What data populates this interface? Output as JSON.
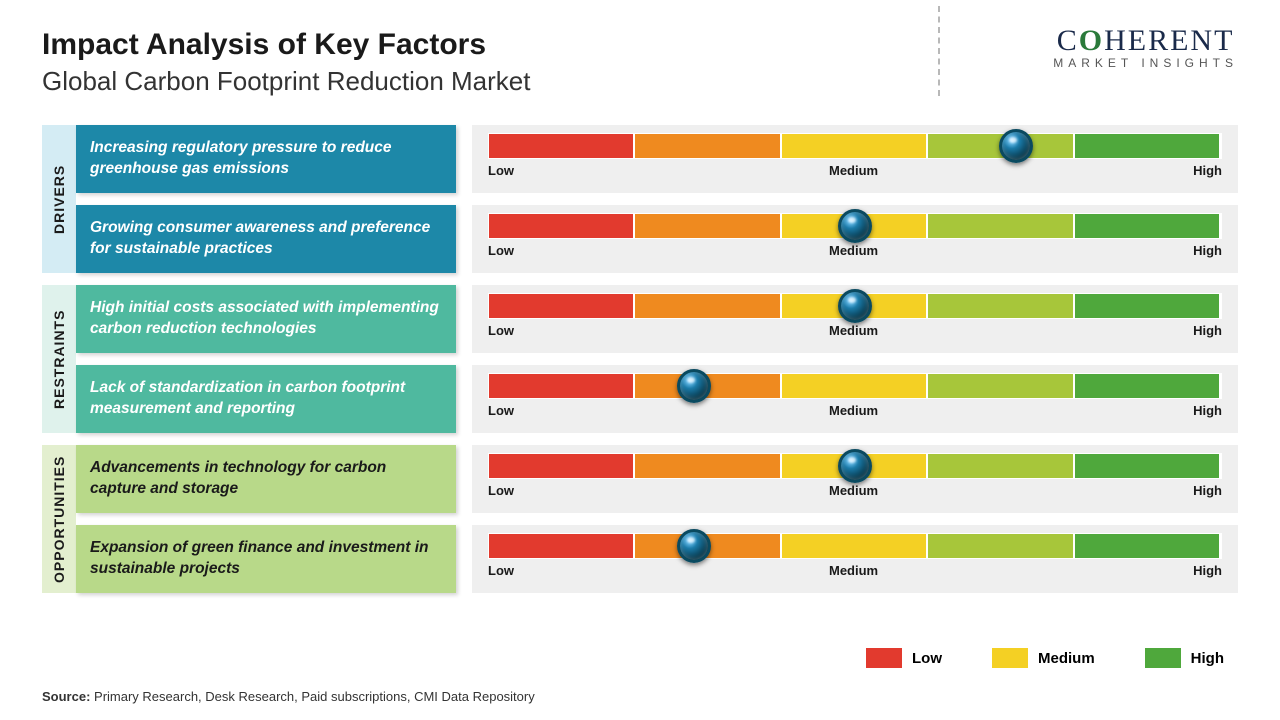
{
  "title": "Impact Analysis of Key Factors",
  "subtitle": "Global Carbon Footprint Reduction Market",
  "logo": {
    "brand": "COHERENT",
    "tagline": "MARKET INSIGHTS"
  },
  "gauge": {
    "segment_colors": [
      "#e23a2e",
      "#ef8a1f",
      "#f4d024",
      "#a7c63a",
      "#4fa83c"
    ],
    "label_low": "Low",
    "label_medium": "Medium",
    "label_high": "High",
    "track_bg": "#efefef",
    "marker_fill": "#1a7aa8",
    "marker_border": "#0a4a60"
  },
  "sections": [
    {
      "label": "DRIVERS",
      "vlabel_bg": "#d4ecf4",
      "factor_bg": "#1d88a8",
      "factor_text_dark": false,
      "rows": [
        {
          "text": "Increasing regulatory pressure to reduce greenhouse gas emissions",
          "position_pct": 72
        },
        {
          "text": "Growing consumer awareness and preference for sustainable practices",
          "position_pct": 50
        }
      ]
    },
    {
      "label": "RESTRAINTS",
      "vlabel_bg": "#dff2ec",
      "factor_bg": "#4fb99f",
      "factor_text_dark": false,
      "rows": [
        {
          "text": "High initial costs associated with implementing carbon reduction technologies",
          "position_pct": 50
        },
        {
          "text": "Lack of standardization in carbon footprint measurement and reporting",
          "position_pct": 28
        }
      ]
    },
    {
      "label": "OPPORTUNITIES",
      "vlabel_bg": "#e3efcf",
      "factor_bg": "#b8d989",
      "factor_text_dark": true,
      "rows": [
        {
          "text": "Advancements in technology for carbon capture and storage",
          "position_pct": 50
        },
        {
          "text": "Expansion of green finance and investment in sustainable projects",
          "position_pct": 28
        }
      ]
    }
  ],
  "legend": {
    "low": {
      "label": "Low",
      "color": "#e23a2e"
    },
    "medium": {
      "label": "Medium",
      "color": "#f4d024"
    },
    "high": {
      "label": "High",
      "color": "#4fa83c"
    }
  },
  "source_label": "Source:",
  "source_text": " Primary Research, Desk Research, Paid subscriptions, CMI Data Repository"
}
